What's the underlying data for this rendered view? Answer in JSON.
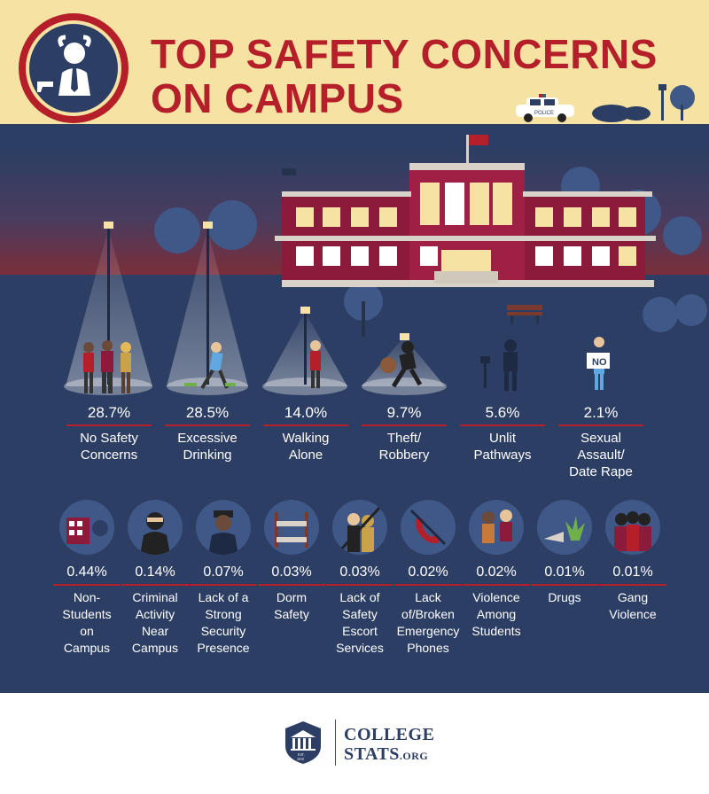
{
  "title_line1": "TOP SAFETY CONCERNS",
  "title_line2": "ON CAMPUS",
  "police_car_text": "POLICE",
  "sign_text": "NO",
  "chart_data": {
    "type": "table",
    "title": "TOP SAFETY CONCERNS ON CAMPUS",
    "top": [
      {
        "value": "28.7%",
        "label": "No Safety\nConcerns"
      },
      {
        "value": "28.5%",
        "label": "Excessive\nDrinking"
      },
      {
        "value": "14.0%",
        "label": "Walking\nAlone"
      },
      {
        "value": "9.7%",
        "label": "Theft/\nRobbery"
      },
      {
        "value": "5.6%",
        "label": "Unlit\nPathways"
      },
      {
        "value": "2.1%",
        "label": "Sexual\nAssault/\nDate Rape"
      }
    ],
    "others": [
      {
        "value": "0.44%",
        "label": "Non-\nStudents\non\nCampus",
        "icon": "building-icon"
      },
      {
        "value": "0.14%",
        "label": "Criminal\nActivity\nNear\nCampus",
        "icon": "burglar-icon"
      },
      {
        "value": "0.07%",
        "label": "Lack of a\nStrong\nSecurity\nPresence",
        "icon": "security-guard-icon"
      },
      {
        "value": "0.03%",
        "label": "Dorm\nSafety",
        "icon": "bunk-bed-icon"
      },
      {
        "value": "0.03%",
        "label": "Lack of\nSafety\nEscort\nServices",
        "icon": "escort-icon"
      },
      {
        "value": "0.02%",
        "label": "Lack\nof/Broken\nEmergency\nPhones",
        "icon": "broken-phone-icon"
      },
      {
        "value": "0.02%",
        "label": "Violence\nAmong\nStudents",
        "icon": "fight-icon"
      },
      {
        "value": "0.01%",
        "label": "Drugs",
        "icon": "drugs-icon"
      },
      {
        "value": "0.01%",
        "label": "Gang\nViolence",
        "icon": "gang-icon"
      }
    ]
  },
  "footer": {
    "brand_line1": "COLLEGE",
    "brand_line2": "STATS",
    "brand_suffix": ".ORG",
    "est_text": "EST.",
    "est_year": "2010"
  },
  "colors": {
    "accent": "#b41f2a",
    "navy": "#2c3e63",
    "cream": "#f6e3a3"
  }
}
